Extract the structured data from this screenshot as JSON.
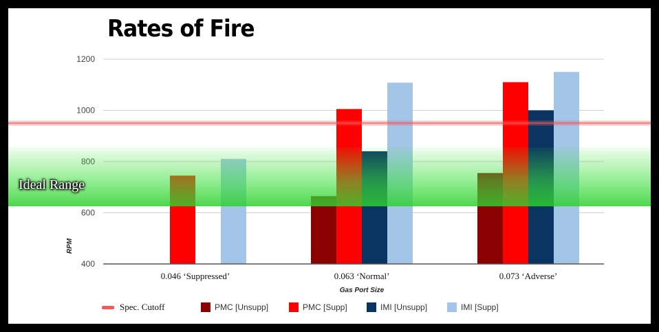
{
  "chart_data": {
    "type": "bar",
    "title": "Rates of Fire",
    "xlabel": "Gas Port Size",
    "ylabel": "RPM",
    "ylim": [
      400,
      1200
    ],
    "yticks": [
      400,
      600,
      800,
      1000,
      1200
    ],
    "categories": [
      "0.046 ‘Suppressed’",
      "0.063 ‘Normal’",
      "0.073  ‘Adverse’"
    ],
    "series": [
      {
        "name": "PMC [Unsupp]",
        "color": "#8b0000",
        "values": [
          null,
          665,
          755
        ]
      },
      {
        "name": "PMC [Supp]",
        "color": "#ff0000",
        "values": [
          745,
          1005,
          1110
        ]
      },
      {
        "name": "IMI [Unsupp]",
        "color": "#0a3461",
        "values": [
          null,
          840,
          1000
        ]
      },
      {
        "name": "IMI [Supp]",
        "color": "#a3c5e8",
        "values": [
          810,
          1108,
          1150
        ]
      }
    ],
    "reference_line": {
      "name": "Spec. Cutoff",
      "value": 950,
      "color": "#f05a5a"
    },
    "ideal_range": {
      "label": "Ideal Range",
      "from": 625,
      "to": 855,
      "color": "#3ee13e"
    },
    "grid": true,
    "legend_position": "bottom"
  }
}
